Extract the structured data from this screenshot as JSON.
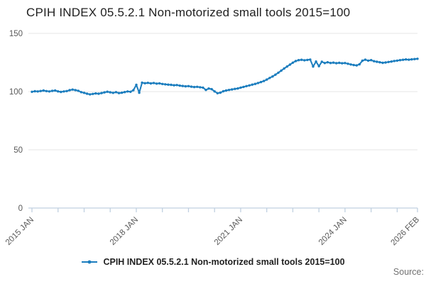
{
  "title": "CPIH INDEX 05.5.2.1 Non-motorized small tools 2015=100",
  "legend": {
    "label": "CPIH INDEX 05.5.2.1 Non-motorized small tools 2015=100"
  },
  "source_label": "Source:",
  "colors": {
    "series": "#1b7dbe",
    "grid": "#e6e6e6",
    "axis": "#c0d0e0",
    "tick_text": "#595959",
    "title_text": "#1f1f1f"
  },
  "chart_data": {
    "type": "line",
    "title": "CPIH INDEX 05.5.2.1 Non-motorized small tools 2015=100",
    "xlabel": "",
    "ylabel": "",
    "ylim": [
      0,
      150
    ],
    "y_ticks": [
      0,
      50,
      100,
      150
    ],
    "grid": "horizontal",
    "legend_position": "bottom",
    "x_unit": "month",
    "x_start": "2015 JAN",
    "x_end": "2026 FEB",
    "x_minor_tick_interval_months": 9,
    "x_tick_labels": [
      {
        "index": 0,
        "label": "2015 JAN"
      },
      {
        "index": 36,
        "label": "2018 JAN"
      },
      {
        "index": 72,
        "label": "2021 JAN"
      },
      {
        "index": 108,
        "label": "2024 JAN"
      },
      {
        "index": 133,
        "label": "2026 FEB"
      }
    ],
    "series": [
      {
        "name": "CPIH INDEX 05.5.2.1 Non-motorized small tools 2015=100",
        "values": [
          99.8,
          100.3,
          100.1,
          100.5,
          100.9,
          100.4,
          100.1,
          100.6,
          100.9,
          100.2,
          99.7,
          100.1,
          100.4,
          101.2,
          101.7,
          101.3,
          100.7,
          99.5,
          98.9,
          98.2,
          97.6,
          98.0,
          98.4,
          98.2,
          98.7,
          99.3,
          99.9,
          99.4,
          98.9,
          99.5,
          98.7,
          99.0,
          99.6,
          100.1,
          99.8,
          101.2,
          105.8,
          99.0,
          107.6,
          107.2,
          107.5,
          107.0,
          107.4,
          106.8,
          107.1,
          106.5,
          106.2,
          106.0,
          105.8,
          105.4,
          105.6,
          105.1,
          104.8,
          104.5,
          104.7,
          104.2,
          103.9,
          104.1,
          103.7,
          103.4,
          101.4,
          102.6,
          102.1,
          100.2,
          98.6,
          99.1,
          100.3,
          100.9,
          101.4,
          101.8,
          102.3,
          102.7,
          103.4,
          104.0,
          104.7,
          105.3,
          106.0,
          106.6,
          107.4,
          108.2,
          109.1,
          110.3,
          111.7,
          113.0,
          114.5,
          116.2,
          118.0,
          119.8,
          121.5,
          123.2,
          124.8,
          126.2,
          127.0,
          127.3,
          126.9,
          127.2,
          127.5,
          121.5,
          125.8,
          121.8,
          125.6,
          124.5,
          125.2,
          124.6,
          124.9,
          124.4,
          124.7,
          124.3,
          124.5,
          123.9,
          123.3,
          122.8,
          122.5,
          123.4,
          126.5,
          127.4,
          126.6,
          127.0,
          126.1,
          125.6,
          125.2,
          124.7,
          125.0,
          125.4,
          125.8,
          126.3,
          126.6,
          127.0,
          127.3,
          127.6,
          127.4,
          127.7,
          127.9,
          128.2
        ]
      }
    ]
  }
}
